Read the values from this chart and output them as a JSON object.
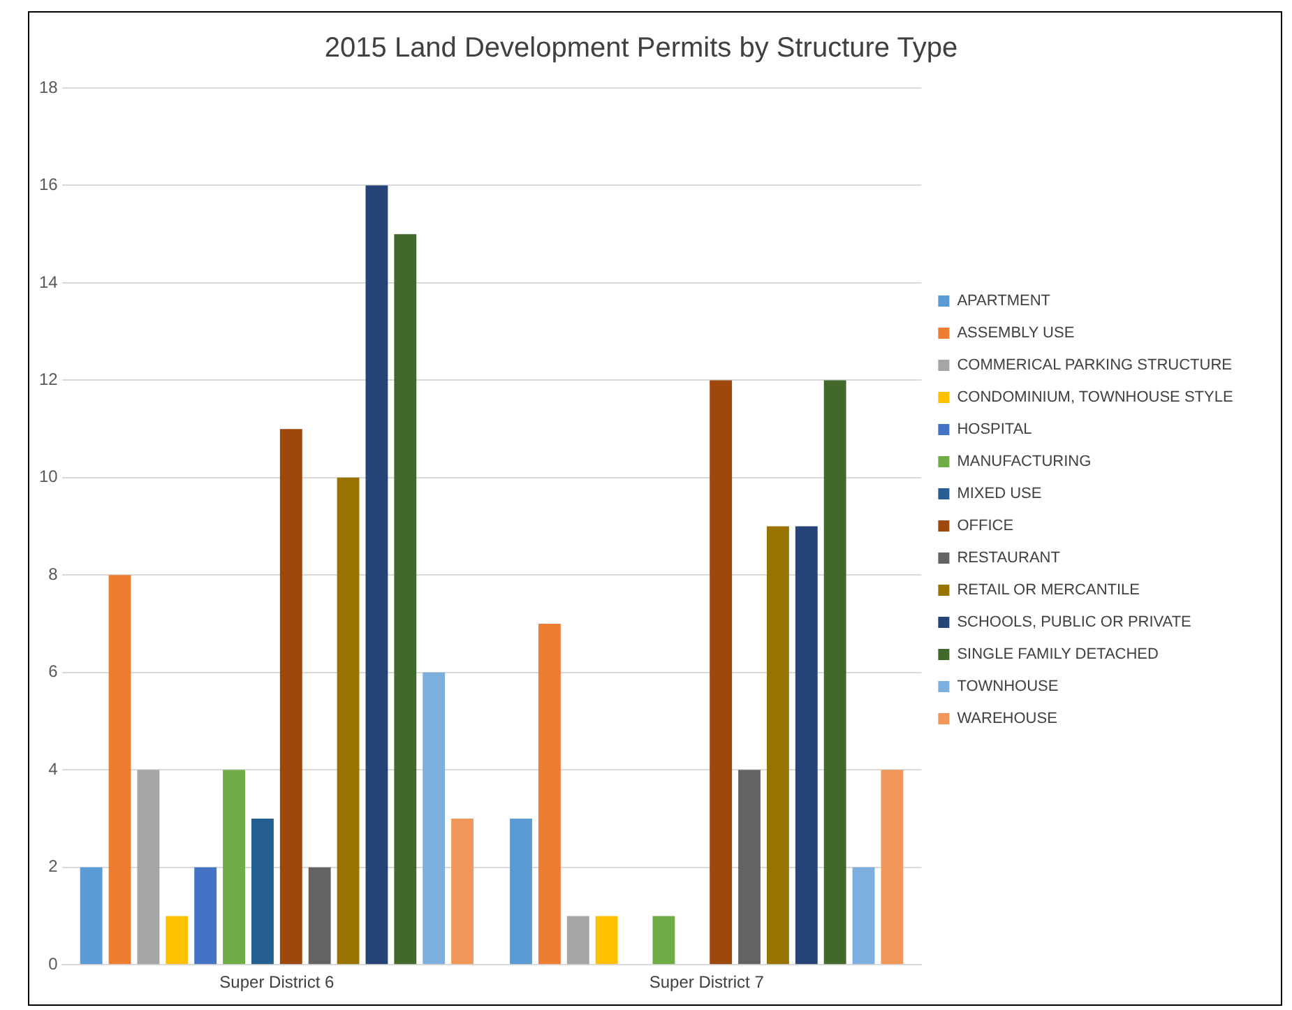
{
  "chart_data": {
    "type": "bar",
    "title": "2015 Land Development Permits by Structure Type",
    "categories": [
      "Super District 6",
      "Super District 7"
    ],
    "series": [
      {
        "name": "APARTMENT",
        "color": "#5b9bd5",
        "values": [
          2,
          3
        ]
      },
      {
        "name": "ASSEMBLY USE",
        "color": "#ed7d31",
        "values": [
          8,
          7
        ]
      },
      {
        "name": "COMMERICAL PARKING STRUCTURE",
        "color": "#a5a5a5",
        "values": [
          4,
          1
        ]
      },
      {
        "name": "CONDOMINIUM, TOWNHOUSE STYLE",
        "color": "#ffc000",
        "values": [
          1,
          1
        ]
      },
      {
        "name": "HOSPITAL",
        "color": "#4472c4",
        "values": [
          2,
          null
        ]
      },
      {
        "name": "MANUFACTURING",
        "color": "#70ad47",
        "values": [
          4,
          1
        ]
      },
      {
        "name": "MIXED USE",
        "color": "#255e91",
        "values": [
          3,
          null
        ]
      },
      {
        "name": "OFFICE",
        "color": "#9e480e",
        "values": [
          11,
          12
        ]
      },
      {
        "name": "RESTAURANT",
        "color": "#636363",
        "values": [
          2,
          4
        ]
      },
      {
        "name": "RETAIL OR MERCANTILE",
        "color": "#997300",
        "values": [
          10,
          9
        ]
      },
      {
        "name": "SCHOOLS, PUBLIC OR PRIVATE",
        "color": "#264478",
        "values": [
          16,
          9
        ]
      },
      {
        "name": "SINGLE FAMILY DETACHED",
        "color": "#43682b",
        "values": [
          15,
          12
        ]
      },
      {
        "name": "TOWNHOUSE",
        "color": "#7cafdd",
        "values": [
          6,
          2
        ]
      },
      {
        "name": "WAREHOUSE",
        "color": "#f1975a",
        "values": [
          3,
          4
        ]
      }
    ],
    "ylim": [
      0,
      18
    ],
    "yticks": [
      0,
      2,
      4,
      6,
      8,
      10,
      12,
      14,
      16,
      18
    ],
    "grid": "y",
    "legend": "right"
  }
}
